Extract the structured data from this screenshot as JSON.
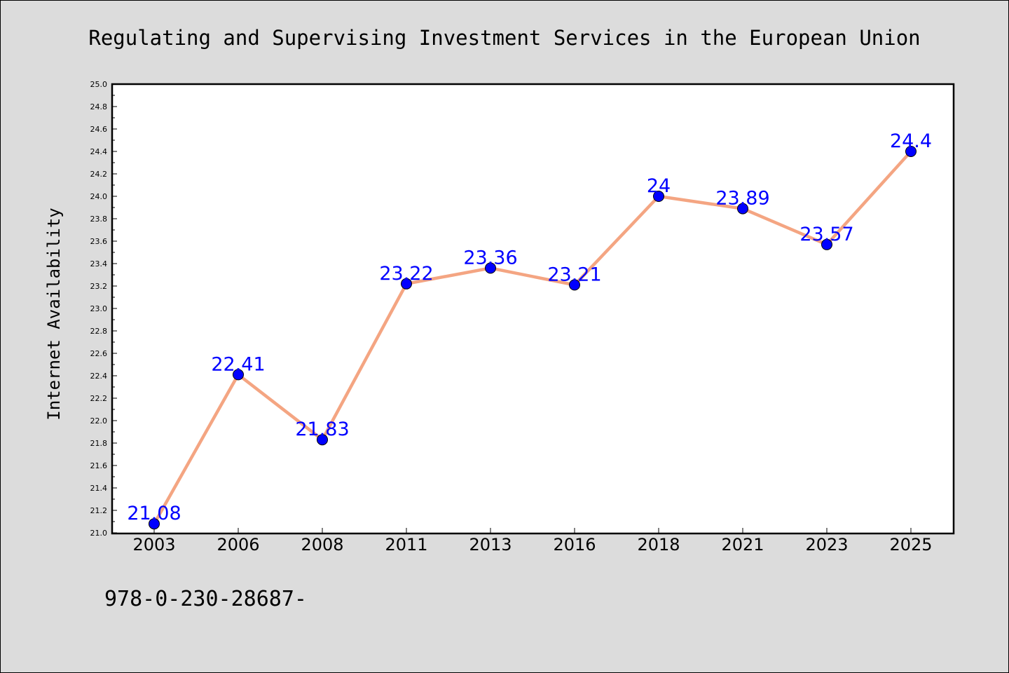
{
  "chart_data": {
    "type": "line",
    "title": "Regulating and Supervising Investment Services in the European Union",
    "ylabel": "Internet Availability",
    "xlabel": "",
    "categories": [
      "2003",
      "2006",
      "2008",
      "2011",
      "2013",
      "2016",
      "2018",
      "2021",
      "2023",
      "2025"
    ],
    "series": [
      {
        "values": [
          21.08,
          22.41,
          21.83,
          23.22,
          23.36,
          23.21,
          24,
          23.89,
          23.57,
          24.4
        ],
        "labels": [
          "21.08",
          "22.41",
          "21.83",
          "23.22",
          "23.36",
          "23.21",
          "24",
          "23.89",
          "23.57",
          "24.4"
        ]
      }
    ],
    "ylim": [
      21.0,
      25.0
    ],
    "yticks": [
      "21.0",
      "21.2",
      "21.4",
      "21.6",
      "21.8",
      "22.0",
      "22.2",
      "22.4",
      "22.6",
      "22.8",
      "23.0",
      "23.2",
      "23.4",
      "23.6",
      "23.8",
      "24.0",
      "24.2",
      "24.4",
      "24.6",
      "24.8",
      "25.0"
    ],
    "grid": false,
    "legend": "none",
    "colors": {
      "line": "#f4a582",
      "marker": "#0000ff",
      "data_label": "#0000ff",
      "plot_background": "#ffffff",
      "page_background": "#dcdcdc"
    }
  },
  "footer": {
    "text": "978-0-230-28687-"
  }
}
